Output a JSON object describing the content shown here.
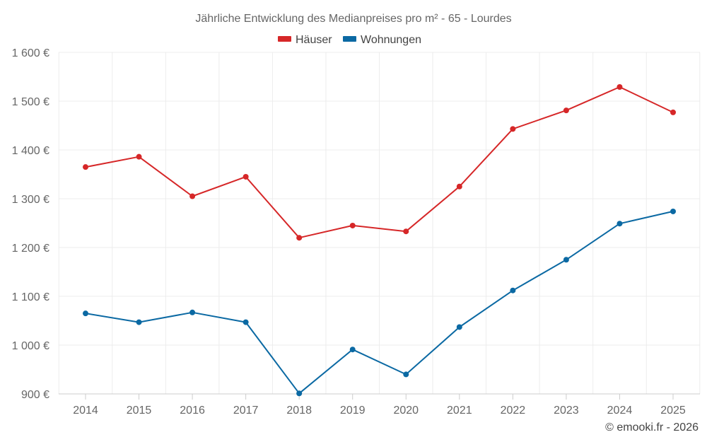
{
  "chart_data": {
    "type": "line",
    "title": "Jährliche Entwicklung des Medianpreises pro m² - 65 - Lourdes",
    "x": [
      "2014",
      "2015",
      "2016",
      "2017",
      "2018",
      "2019",
      "2020",
      "2021",
      "2022",
      "2023",
      "2024",
      "2025"
    ],
    "series": [
      {
        "name": "Häuser",
        "color": "#d62728",
        "values": [
          1365,
          1386,
          1305,
          1345,
          1220,
          1245,
          1233,
          1325,
          1443,
          1481,
          1529,
          1477
        ]
      },
      {
        "name": "Wohnungen",
        "color": "#0b69a3",
        "values": [
          1065,
          1047,
          1067,
          1047,
          901,
          991,
          940,
          1037,
          1112,
          1175,
          1249,
          1274
        ]
      }
    ],
    "ylim": [
      900,
      1600
    ],
    "yticks": [
      900,
      1000,
      1100,
      1200,
      1300,
      1400,
      1500,
      1600
    ],
    "ytick_labels": [
      "900 €",
      "1 000 €",
      "1 100 €",
      "1 200 €",
      "1 300 €",
      "1 400 €",
      "1 500 €",
      "1 600 €"
    ],
    "xlabel": "",
    "ylabel": "",
    "grid": true,
    "legend": "top-center"
  },
  "credit": "© emooki.fr - 2026"
}
